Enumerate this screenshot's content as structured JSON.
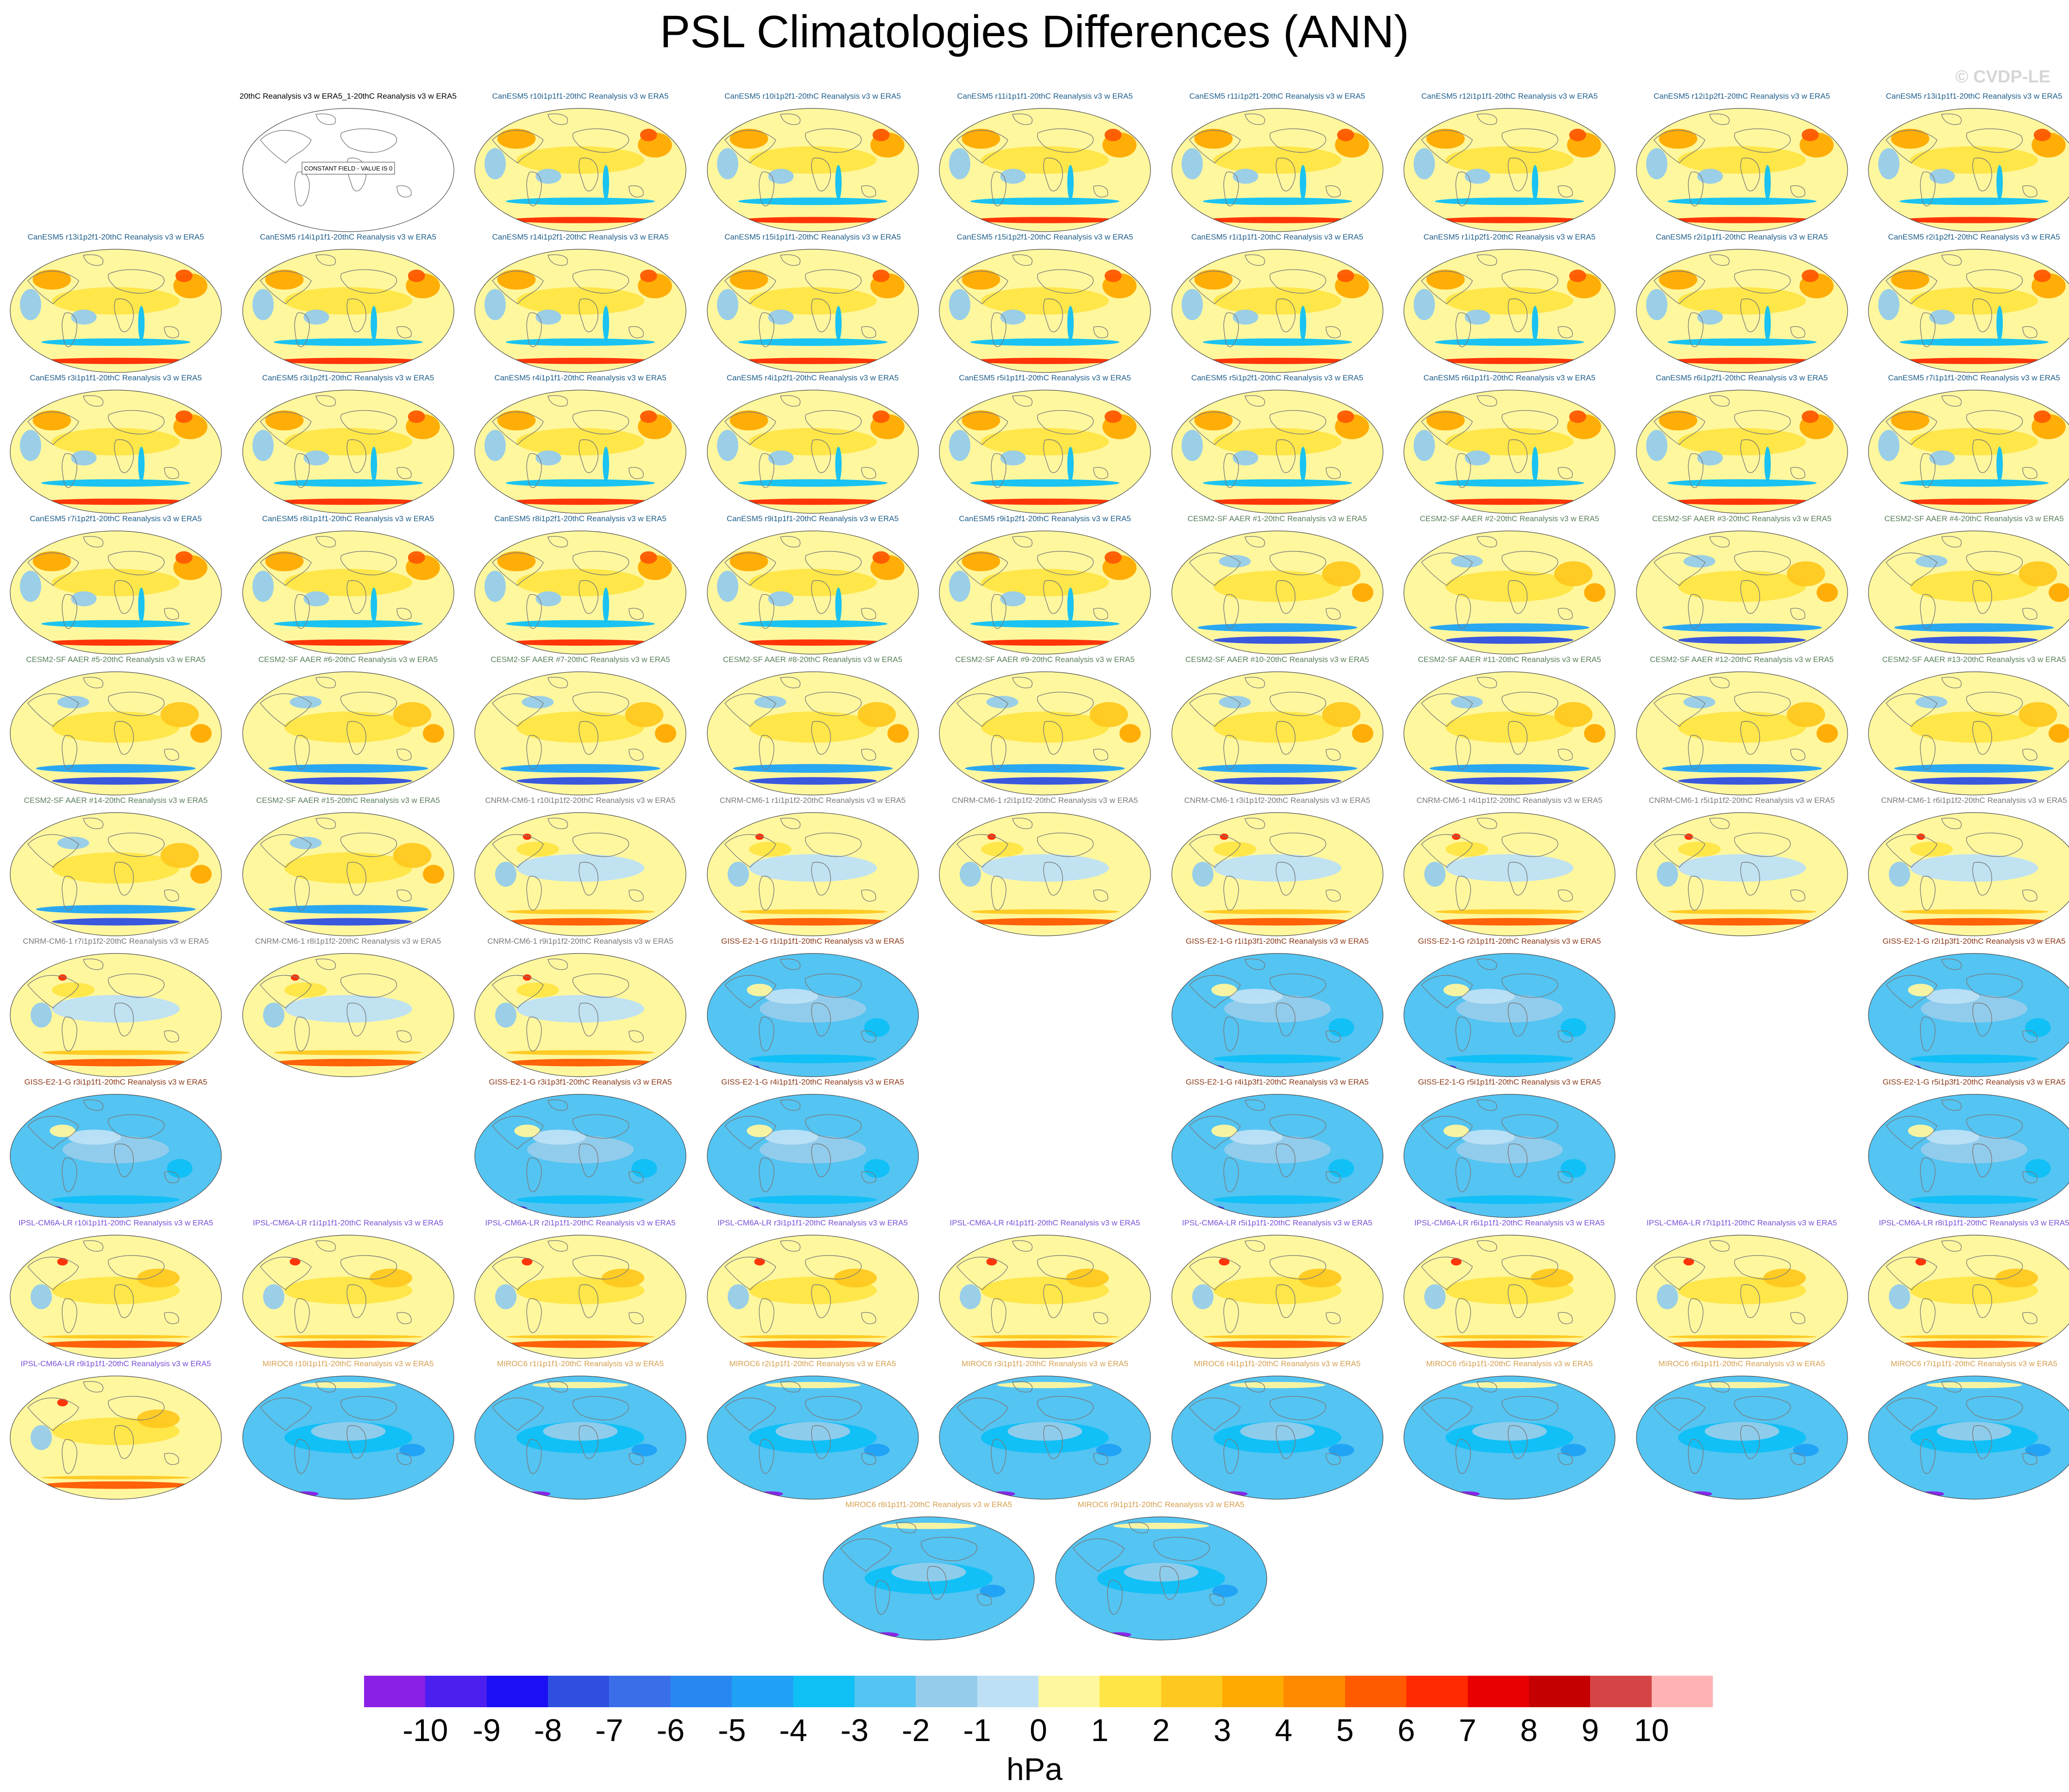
{
  "title": "PSL Climatologies Differences (ANN)",
  "watermark": "© CVDP-LE",
  "units": "hPa",
  "colorbar": {
    "ticks": [
      "-10",
      "-9",
      "-8",
      "-7",
      "-6",
      "-5",
      "-4",
      "-3",
      "-2",
      "-1",
      "0",
      "1",
      "2",
      "3",
      "4",
      "5",
      "6",
      "7",
      "8",
      "9",
      "10"
    ],
    "colors": [
      "#8a1fe6",
      "#4b1ff0",
      "#1a0ff5",
      "#2f4fe0",
      "#3a6ee8",
      "#2888f2",
      "#1fa2f5",
      "#0ec0f5",
      "#54c4f2",
      "#96cceb",
      "#bde0f5",
      "#fff79e",
      "#ffe545",
      "#ffc81f",
      "#ffaa00",
      "#ff8a00",
      "#ff5a00",
      "#ff2a00",
      "#e60000",
      "#c40000",
      "#d64545",
      "#ffb3b3"
    ]
  },
  "panels": [
    {
      "label": "20thC Reanalysis v3 w ERA5_1-20thC Reanalysis v3 w ERA5",
      "row": 0,
      "col": 1,
      "style": "blank",
      "note": "CONSTANT FIELD - VALUE IS 0",
      "lc": "#000000"
    },
    {
      "label": "CanESM5 r10i1p1f1-20thC Reanalysis v3 w ERA5",
      "row": 0,
      "col": 2,
      "style": "can",
      "lc": "#1f5f8b"
    },
    {
      "label": "CanESM5 r10i1p2f1-20thC Reanalysis v3 w ERA5",
      "row": 0,
      "col": 3,
      "style": "can",
      "lc": "#1f5f8b"
    },
    {
      "label": "CanESM5 r11i1p1f1-20thC Reanalysis v3 w ERA5",
      "row": 0,
      "col": 4,
      "style": "can",
      "lc": "#1f5f8b"
    },
    {
      "label": "CanESM5 r11i1p2f1-20thC Reanalysis v3 w ERA5",
      "row": 0,
      "col": 5,
      "style": "can",
      "lc": "#1f5f8b"
    },
    {
      "label": "CanESM5 r12i1p1f1-20thC Reanalysis v3 w ERA5",
      "row": 0,
      "col": 6,
      "style": "can",
      "lc": "#1f5f8b"
    },
    {
      "label": "CanESM5 r12i1p2f1-20thC Reanalysis v3 w ERA5",
      "row": 0,
      "col": 7,
      "style": "can",
      "lc": "#1f5f8b"
    },
    {
      "label": "CanESM5 r13i1p1f1-20thC Reanalysis v3 w ERA5",
      "row": 0,
      "col": 8,
      "style": "can",
      "lc": "#1f5f8b"
    },
    {
      "label": "CanESM5 r13i1p2f1-20thC Reanalysis v3 w ERA5",
      "row": 1,
      "col": 0,
      "style": "can",
      "lc": "#1f5f8b"
    },
    {
      "label": "CanESM5 r14i1p1f1-20thC Reanalysis v3 w ERA5",
      "row": 1,
      "col": 1,
      "style": "can",
      "lc": "#1f5f8b"
    },
    {
      "label": "CanESM5 r14i1p2f1-20thC Reanalysis v3 w ERA5",
      "row": 1,
      "col": 2,
      "style": "can",
      "lc": "#1f5f8b"
    },
    {
      "label": "CanESM5 r15i1p1f1-20thC Reanalysis v3 w ERA5",
      "row": 1,
      "col": 3,
      "style": "can",
      "lc": "#1f5f8b"
    },
    {
      "label": "CanESM5 r15i1p2f1-20thC Reanalysis v3 w ERA5",
      "row": 1,
      "col": 4,
      "style": "can",
      "lc": "#1f5f8b"
    },
    {
      "label": "CanESM5 r1i1p1f1-20thC Reanalysis v3 w ERA5",
      "row": 1,
      "col": 5,
      "style": "can",
      "lc": "#1f5f8b"
    },
    {
      "label": "CanESM5 r1i1p2f1-20thC Reanalysis v3 w ERA5",
      "row": 1,
      "col": 6,
      "style": "can",
      "lc": "#1f5f8b"
    },
    {
      "label": "CanESM5 r2i1p1f1-20thC Reanalysis v3 w ERA5",
      "row": 1,
      "col": 7,
      "style": "can",
      "lc": "#1f5f8b"
    },
    {
      "label": "CanESM5 r2i1p2f1-20thC Reanalysis v3 w ERA5",
      "row": 1,
      "col": 8,
      "style": "can",
      "lc": "#1f5f8b"
    },
    {
      "label": "CanESM5 r3i1p1f1-20thC Reanalysis v3 w ERA5",
      "row": 2,
      "col": 0,
      "style": "can",
      "lc": "#1f5f8b"
    },
    {
      "label": "CanESM5 r3i1p2f1-20thC Reanalysis v3 w ERA5",
      "row": 2,
      "col": 1,
      "style": "can",
      "lc": "#1f5f8b"
    },
    {
      "label": "CanESM5 r4i1p1f1-20thC Reanalysis v3 w ERA5",
      "row": 2,
      "col": 2,
      "style": "can",
      "lc": "#1f5f8b"
    },
    {
      "label": "CanESM5 r4i1p2f1-20thC Reanalysis v3 w ERA5",
      "row": 2,
      "col": 3,
      "style": "can",
      "lc": "#1f5f8b"
    },
    {
      "label": "CanESM5 r5i1p1f1-20thC Reanalysis v3 w ERA5",
      "row": 2,
      "col": 4,
      "style": "can",
      "lc": "#1f5f8b"
    },
    {
      "label": "CanESM5 r5i1p2f1-20thC Reanalysis v3 w ERA5",
      "row": 2,
      "col": 5,
      "style": "can",
      "lc": "#1f5f8b"
    },
    {
      "label": "CanESM5 r6i1p1f1-20thC Reanalysis v3 w ERA5",
      "row": 2,
      "col": 6,
      "style": "can",
      "lc": "#1f5f8b"
    },
    {
      "label": "CanESM5 r6i1p2f1-20thC Reanalysis v3 w ERA5",
      "row": 2,
      "col": 7,
      "style": "can",
      "lc": "#1f5f8b"
    },
    {
      "label": "CanESM5 r7i1p1f1-20thC Reanalysis v3 w ERA5",
      "row": 2,
      "col": 8,
      "style": "can",
      "lc": "#1f5f8b"
    },
    {
      "label": "CanESM5 r7i1p2f1-20thC Reanalysis v3 w ERA5",
      "row": 3,
      "col": 0,
      "style": "can",
      "lc": "#1f5f8b"
    },
    {
      "label": "CanESM5 r8i1p1f1-20thC Reanalysis v3 w ERA5",
      "row": 3,
      "col": 1,
      "style": "can",
      "lc": "#1f5f8b"
    },
    {
      "label": "CanESM5 r8i1p2f1-20thC Reanalysis v3 w ERA5",
      "row": 3,
      "col": 2,
      "style": "can",
      "lc": "#1f5f8b"
    },
    {
      "label": "CanESM5 r9i1p1f1-20thC Reanalysis v3 w ERA5",
      "row": 3,
      "col": 3,
      "style": "can",
      "lc": "#1f5f8b"
    },
    {
      "label": "CanESM5 r9i1p2f1-20thC Reanalysis v3 w ERA5",
      "row": 3,
      "col": 4,
      "style": "can",
      "lc": "#1f5f8b"
    },
    {
      "label": "CESM2-SF AAER #1-20thC Reanalysis v3 w ERA5",
      "row": 3,
      "col": 5,
      "style": "cesm",
      "lc": "#5a7f5a"
    },
    {
      "label": "CESM2-SF AAER #2-20thC Reanalysis v3 w ERA5",
      "row": 3,
      "col": 6,
      "style": "cesm",
      "lc": "#5a7f5a"
    },
    {
      "label": "CESM2-SF AAER #3-20thC Reanalysis v3 w ERA5",
      "row": 3,
      "col": 7,
      "style": "cesm",
      "lc": "#5a7f5a"
    },
    {
      "label": "CESM2-SF AAER #4-20thC Reanalysis v3 w ERA5",
      "row": 3,
      "col": 8,
      "style": "cesm",
      "lc": "#5a7f5a"
    },
    {
      "label": "CESM2-SF AAER #5-20thC Reanalysis v3 w ERA5",
      "row": 4,
      "col": 0,
      "style": "cesm",
      "lc": "#5a7f5a"
    },
    {
      "label": "CESM2-SF AAER #6-20thC Reanalysis v3 w ERA5",
      "row": 4,
      "col": 1,
      "style": "cesm",
      "lc": "#5a7f5a"
    },
    {
      "label": "CESM2-SF AAER #7-20thC Reanalysis v3 w ERA5",
      "row": 4,
      "col": 2,
      "style": "cesm",
      "lc": "#5a7f5a"
    },
    {
      "label": "CESM2-SF AAER #8-20thC Reanalysis v3 w ERA5",
      "row": 4,
      "col": 3,
      "style": "cesm",
      "lc": "#5a7f5a"
    },
    {
      "label": "CESM2-SF AAER #9-20thC Reanalysis v3 w ERA5",
      "row": 4,
      "col": 4,
      "style": "cesm",
      "lc": "#5a7f5a"
    },
    {
      "label": "CESM2-SF AAER #10-20thC Reanalysis v3 w ERA5",
      "row": 4,
      "col": 5,
      "style": "cesm",
      "lc": "#5a7f5a"
    },
    {
      "label": "CESM2-SF AAER #11-20thC Reanalysis v3 w ERA5",
      "row": 4,
      "col": 6,
      "style": "cesm",
      "lc": "#5a7f5a"
    },
    {
      "label": "CESM2-SF AAER #12-20thC Reanalysis v3 w ERA5",
      "row": 4,
      "col": 7,
      "style": "cesm",
      "lc": "#5a7f5a"
    },
    {
      "label": "CESM2-SF AAER #13-20thC Reanalysis v3 w ERA5",
      "row": 4,
      "col": 8,
      "style": "cesm",
      "lc": "#5a7f5a"
    },
    {
      "label": "CESM2-SF AAER #14-20thC Reanalysis v3 w ERA5",
      "row": 5,
      "col": 0,
      "style": "cesm",
      "lc": "#5a7f5a"
    },
    {
      "label": "CESM2-SF AAER #15-20thC Reanalysis v3 w ERA5",
      "row": 5,
      "col": 1,
      "style": "cesm",
      "lc": "#5a7f5a"
    },
    {
      "label": "CNRM-CM6-1 r10i1p1f2-20thC Reanalysis v3 w ERA5",
      "row": 5,
      "col": 2,
      "style": "cnrm",
      "lc": "#7a7a7a"
    },
    {
      "label": "CNRM-CM6-1 r1i1p1f2-20thC Reanalysis v3 w ERA5",
      "row": 5,
      "col": 3,
      "style": "cnrm",
      "lc": "#7a7a7a"
    },
    {
      "label": "CNRM-CM6-1 r2i1p1f2-20thC Reanalysis v3 w ERA5",
      "row": 5,
      "col": 4,
      "style": "cnrm",
      "lc": "#7a7a7a"
    },
    {
      "label": "CNRM-CM6-1 r3i1p1f2-20thC Reanalysis v3 w ERA5",
      "row": 5,
      "col": 5,
      "style": "cnrm",
      "lc": "#7a7a7a"
    },
    {
      "label": "CNRM-CM6-1 r4i1p1f2-20thC Reanalysis v3 w ERA5",
      "row": 5,
      "col": 6,
      "style": "cnrm",
      "lc": "#7a7a7a"
    },
    {
      "label": "CNRM-CM6-1 r5i1p1f2-20thC Reanalysis v3 w ERA5",
      "row": 5,
      "col": 7,
      "style": "cnrm",
      "lc": "#7a7a7a"
    },
    {
      "label": "CNRM-CM6-1 r6i1p1f2-20thC Reanalysis v3 w ERA5",
      "row": 5,
      "col": 8,
      "style": "cnrm",
      "lc": "#7a7a7a"
    },
    {
      "label": "CNRM-CM6-1 r7i1p1f2-20thC Reanalysis v3 w ERA5",
      "row": 6,
      "col": 0,
      "style": "cnrm",
      "lc": "#7a7a7a"
    },
    {
      "label": "CNRM-CM6-1 r8i1p1f2-20thC Reanalysis v3 w ERA5",
      "row": 6,
      "col": 1,
      "style": "cnrm",
      "lc": "#7a7a7a"
    },
    {
      "label": "CNRM-CM6-1 r9i1p1f2-20thC Reanalysis v3 w ERA5",
      "row": 6,
      "col": 2,
      "style": "cnrm",
      "lc": "#7a7a7a"
    },
    {
      "label": "GISS-E2-1-G r1i1p1f1-20thC Reanalysis v3 w ERA5",
      "row": 6,
      "col": 3,
      "style": "giss",
      "lc": "#8b3a1a"
    },
    {
      "label": "GISS-E2-1-G r1i1p3f1-20thC Reanalysis v3 w ERA5",
      "row": 6,
      "col": 5,
      "style": "giss",
      "lc": "#8b3a1a"
    },
    {
      "label": "GISS-E2-1-G r2i1p1f1-20thC Reanalysis v3 w ERA5",
      "row": 6,
      "col": 6,
      "style": "giss",
      "lc": "#8b3a1a"
    },
    {
      "label": "GISS-E2-1-G r2i1p3f1-20thC Reanalysis v3 w ERA5",
      "row": 6,
      "col": 8,
      "style": "giss",
      "lc": "#8b3a1a"
    },
    {
      "label": "GISS-E2-1-G r3i1p1f1-20thC Reanalysis v3 w ERA5",
      "row": 7,
      "col": 0,
      "style": "giss",
      "lc": "#8b3a1a"
    },
    {
      "label": "GISS-E2-1-G r3i1p3f1-20thC Reanalysis v3 w ERA5",
      "row": 7,
      "col": 2,
      "style": "giss",
      "lc": "#8b3a1a"
    },
    {
      "label": "GISS-E2-1-G r4i1p1f1-20thC Reanalysis v3 w ERA5",
      "row": 7,
      "col": 3,
      "style": "giss",
      "lc": "#8b3a1a"
    },
    {
      "label": "GISS-E2-1-G r4i1p3f1-20thC Reanalysis v3 w ERA5",
      "row": 7,
      "col": 5,
      "style": "giss",
      "lc": "#8b3a1a"
    },
    {
      "label": "GISS-E2-1-G r5i1p1f1-20thC Reanalysis v3 w ERA5",
      "row": 7,
      "col": 6,
      "style": "giss",
      "lc": "#8b3a1a"
    },
    {
      "label": "GISS-E2-1-G r5i1p3f1-20thC Reanalysis v3 w ERA5",
      "row": 7,
      "col": 8,
      "style": "giss",
      "lc": "#8b3a1a"
    },
    {
      "label": "IPSL-CM6A-LR r10i1p1f1-20thC Reanalysis v3 w ERA5",
      "row": 8,
      "col": 0,
      "style": "ipsl",
      "lc": "#7a4fd6"
    },
    {
      "label": "IPSL-CM6A-LR r1i1p1f1-20thC Reanalysis v3 w ERA5",
      "row": 8,
      "col": 1,
      "style": "ipsl",
      "lc": "#7a4fd6"
    },
    {
      "label": "IPSL-CM6A-LR r2i1p1f1-20thC Reanalysis v3 w ERA5",
      "row": 8,
      "col": 2,
      "style": "ipsl",
      "lc": "#7a4fd6"
    },
    {
      "label": "IPSL-CM6A-LR r3i1p1f1-20thC Reanalysis v3 w ERA5",
      "row": 8,
      "col": 3,
      "style": "ipsl",
      "lc": "#7a4fd6"
    },
    {
      "label": "IPSL-CM6A-LR r4i1p1f1-20thC Reanalysis v3 w ERA5",
      "row": 8,
      "col": 4,
      "style": "ipsl",
      "lc": "#7a4fd6"
    },
    {
      "label": "IPSL-CM6A-LR r5i1p1f1-20thC Reanalysis v3 w ERA5",
      "row": 8,
      "col": 5,
      "style": "ipsl",
      "lc": "#7a4fd6"
    },
    {
      "label": "IPSL-CM6A-LR r6i1p1f1-20thC Reanalysis v3 w ERA5",
      "row": 8,
      "col": 6,
      "style": "ipsl",
      "lc": "#7a4fd6"
    },
    {
      "label": "IPSL-CM6A-LR r7i1p1f1-20thC Reanalysis v3 w ERA5",
      "row": 8,
      "col": 7,
      "style": "ipsl",
      "lc": "#7a4fd6"
    },
    {
      "label": "IPSL-CM6A-LR r8i1p1f1-20thC Reanalysis v3 w ERA5",
      "row": 8,
      "col": 8,
      "style": "ipsl",
      "lc": "#7a4fd6"
    },
    {
      "label": "IPSL-CM6A-LR r9i1p1f1-20thC Reanalysis v3 w ERA5",
      "row": 9,
      "col": 0,
      "style": "ipsl",
      "lc": "#7a4fd6"
    },
    {
      "label": "MIROC6 r10i1p1f1-20thC Reanalysis v3 w ERA5",
      "row": 9,
      "col": 1,
      "style": "miroc",
      "lc": "#d6a050"
    },
    {
      "label": "MIROC6 r1i1p1f1-20thC Reanalysis v3 w ERA5",
      "row": 9,
      "col": 2,
      "style": "miroc",
      "lc": "#d6a050"
    },
    {
      "label": "MIROC6 r2i1p1f1-20thC Reanalysis v3 w ERA5",
      "row": 9,
      "col": 3,
      "style": "miroc",
      "lc": "#d6a050"
    },
    {
      "label": "MIROC6 r3i1p1f1-20thC Reanalysis v3 w ERA5",
      "row": 9,
      "col": 4,
      "style": "miroc",
      "lc": "#d6a050"
    },
    {
      "label": "MIROC6 r4i1p1f1-20thC Reanalysis v3 w ERA5",
      "row": 9,
      "col": 5,
      "style": "miroc",
      "lc": "#d6a050"
    },
    {
      "label": "MIROC6 r5i1p1f1-20thC Reanalysis v3 w ERA5",
      "row": 9,
      "col": 6,
      "style": "miroc",
      "lc": "#d6a050"
    },
    {
      "label": "MIROC6 r6i1p1f1-20thC Reanalysis v3 w ERA5",
      "row": 9,
      "col": 7,
      "style": "miroc",
      "lc": "#d6a050"
    },
    {
      "label": "MIROC6 r7i1p1f1-20thC Reanalysis v3 w ERA5",
      "row": 9,
      "col": 8,
      "style": "miroc",
      "lc": "#d6a050"
    },
    {
      "label": "MIROC6 r8i1p1f1-20thC Reanalysis v3 w ERA5",
      "row": 10,
      "col": 3.5,
      "style": "miroc",
      "lc": "#d6a050"
    },
    {
      "label": "MIROC6 r9i1p1f1-20thC Reanalysis v3 w ERA5",
      "row": 10,
      "col": 4.5,
      "style": "miroc",
      "lc": "#d6a050"
    }
  ]
}
